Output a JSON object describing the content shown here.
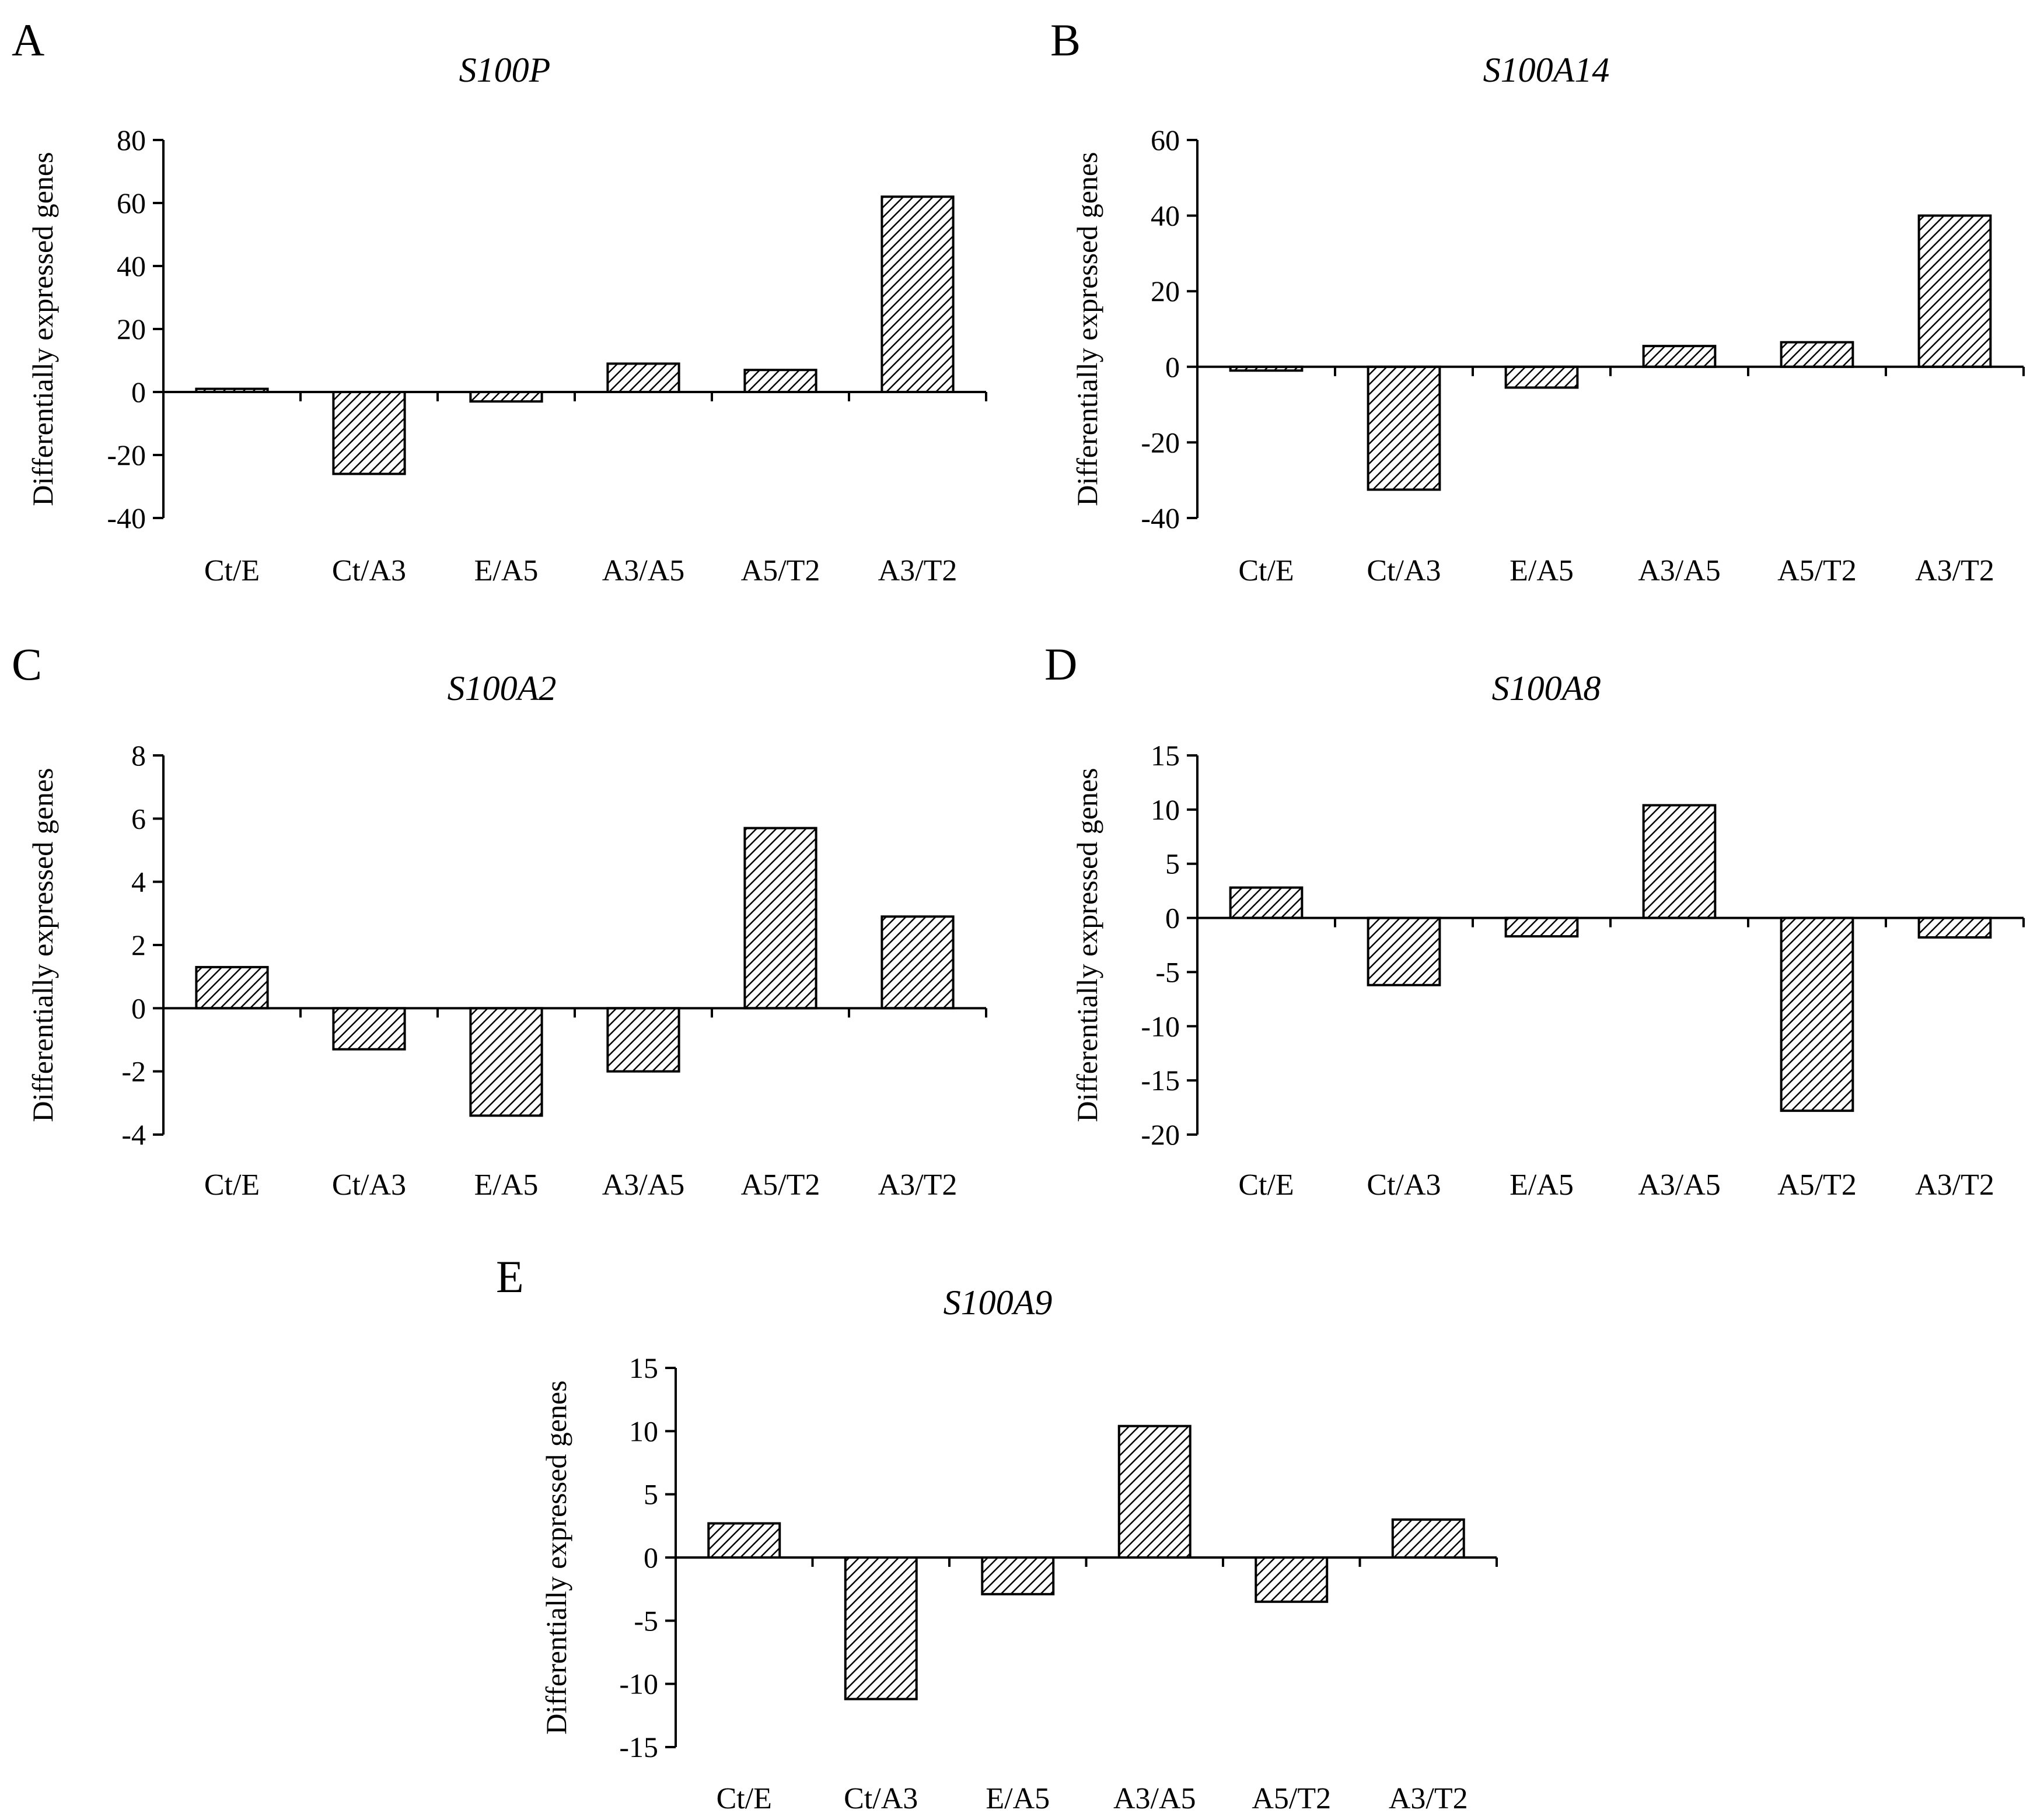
{
  "figure": {
    "colors": {
      "bar_fill": "#ffffff",
      "hatch": "#000000",
      "axis": "#000000"
    },
    "pattern": "diagonal-hatch"
  },
  "chart_data": [
    {
      "panel": "A",
      "type": "bar",
      "title": "S100P",
      "xlabel": "",
      "ylabel": "Differentially expressed genes",
      "ylim": [
        -40,
        80
      ],
      "yticks": [
        -40,
        -20,
        0,
        20,
        40,
        60,
        80
      ],
      "categories": [
        "Ct/E",
        "Ct/A3",
        "E/A5",
        "A3/A5",
        "A5/T2",
        "A3/T2"
      ],
      "values": [
        1,
        -26,
        -3,
        9,
        7,
        62
      ]
    },
    {
      "panel": "B",
      "type": "bar",
      "title": "S100A14",
      "xlabel": "",
      "ylabel": "Differentially expressed genes",
      "ylim": [
        -40,
        60
      ],
      "yticks": [
        -40,
        -20,
        0,
        20,
        40,
        60
      ],
      "categories": [
        "Ct/E",
        "Ct/A3",
        "E/A5",
        "A3/A5",
        "A5/T2",
        "A3/T2"
      ],
      "values": [
        -1,
        -32.5,
        -5.5,
        5.5,
        6.5,
        40
      ]
    },
    {
      "panel": "C",
      "type": "bar",
      "title": "S100A2",
      "xlabel": "",
      "ylabel": "Differentially expressed genes",
      "ylim": [
        -4,
        8
      ],
      "yticks": [
        -4,
        -2,
        0,
        2,
        4,
        6,
        8
      ],
      "categories": [
        "Ct/E",
        "Ct/A3",
        "E/A5",
        "A3/A5",
        "A5/T2",
        "A3/T2"
      ],
      "values": [
        1.3,
        -1.3,
        -3.4,
        -2,
        5.7,
        2.9
      ]
    },
    {
      "panel": "D",
      "type": "bar",
      "title": "S100A8",
      "xlabel": "",
      "ylabel": "Differentially expressed genes",
      "ylim": [
        -20,
        15
      ],
      "yticks": [
        -20,
        -15,
        -10,
        -5,
        0,
        5,
        10,
        15
      ],
      "categories": [
        "Ct/E",
        "Ct/A3",
        "E/A5",
        "A3/A5",
        "A5/T2",
        "A3/T2"
      ],
      "values": [
        2.8,
        -6.2,
        -1.7,
        10.4,
        -17.8,
        -1.8
      ]
    },
    {
      "panel": "E",
      "type": "bar",
      "title": "S100A9",
      "xlabel": "",
      "ylabel": "Differentially expressed genes",
      "ylim": [
        -15,
        15
      ],
      "yticks": [
        -15,
        -10,
        -5,
        0,
        5,
        10,
        15
      ],
      "categories": [
        "Ct/E",
        "Ct/A3",
        "E/A5",
        "A3/A5",
        "A5/T2",
        "A3/T2"
      ],
      "values": [
        2.7,
        -11.2,
        -2.9,
        10.4,
        -3.5,
        3
      ]
    }
  ]
}
